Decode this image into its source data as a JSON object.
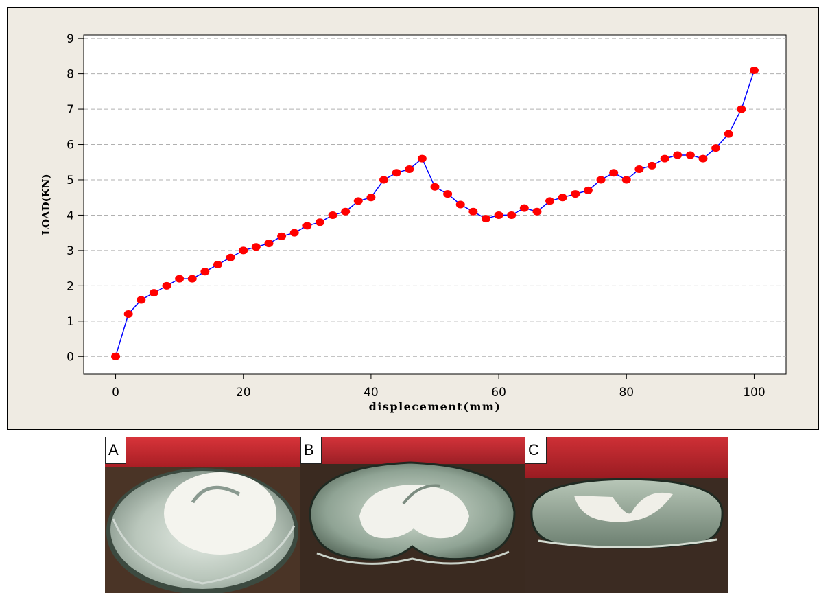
{
  "chart_data": {
    "type": "line",
    "xlabel": "displecement(mm)",
    "ylabel": "LOAD(KN)",
    "xlim": [
      -5,
      105
    ],
    "ylim": [
      -0.5,
      9.1
    ],
    "xticks": [
      0,
      20,
      40,
      60,
      80,
      100
    ],
    "yticks": [
      0,
      1,
      2,
      3,
      4,
      5,
      6,
      7,
      8,
      9
    ],
    "grid": "horizontal dashed",
    "line_color": "#0000ff",
    "marker_color": "#ff0000",
    "panel_background": "#efebe3",
    "series": [
      {
        "x": [
          0,
          2,
          4,
          6,
          8,
          10,
          12,
          14,
          16,
          18,
          20,
          22,
          24,
          26,
          28,
          30,
          32,
          34,
          36,
          38,
          40,
          42,
          44,
          46,
          48,
          50,
          52,
          54,
          56,
          58,
          60,
          62,
          64,
          66,
          68,
          70,
          72,
          74,
          76,
          78,
          80,
          82,
          84,
          86,
          88,
          90,
          92,
          94,
          96,
          98,
          100
        ],
        "y": [
          0,
          1.2,
          1.6,
          1.8,
          2.0,
          2.2,
          2.2,
          2.4,
          2.6,
          2.8,
          3.0,
          3.1,
          3.2,
          3.4,
          3.5,
          3.7,
          3.8,
          4.0,
          4.1,
          4.4,
          4.5,
          5.0,
          5.2,
          5.3,
          5.6,
          4.8,
          4.6,
          4.3,
          4.1,
          3.9,
          4.0,
          4.0,
          4.2,
          4.1,
          4.4,
          4.5,
          4.6,
          4.7,
          5.0,
          5.2,
          5.0,
          5.3,
          5.4,
          5.6,
          5.7,
          5.7,
          5.6,
          5.9,
          6.3,
          7.0,
          8.1
        ]
      }
    ]
  },
  "photos": [
    {
      "label": "A"
    },
    {
      "label": "B"
    },
    {
      "label": "C"
    }
  ]
}
